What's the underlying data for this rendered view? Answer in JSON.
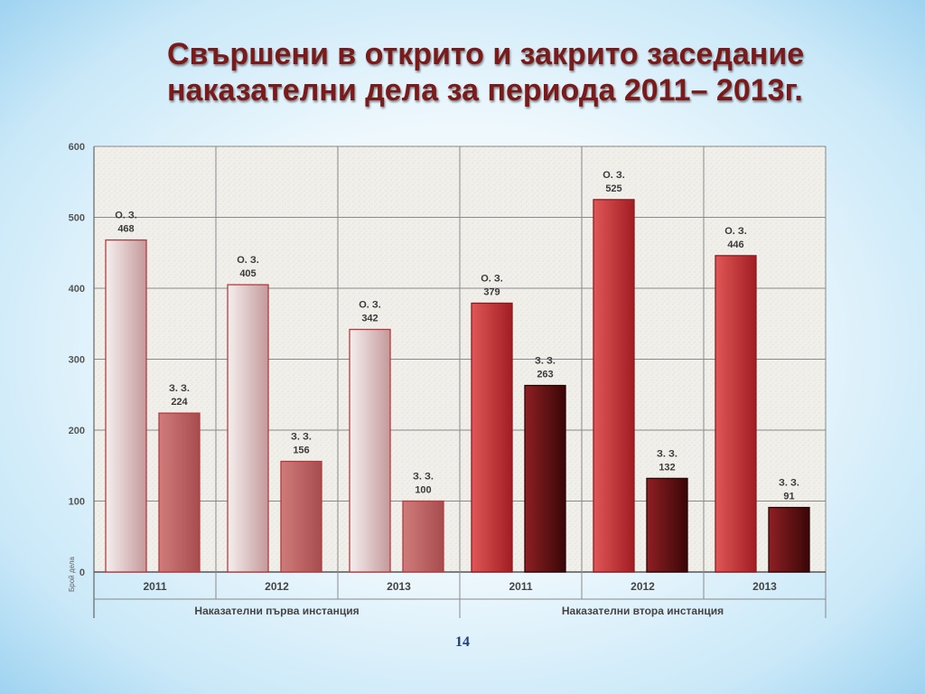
{
  "title": {
    "line1": "Свършени в открито и закрито заседание",
    "line2": "наказателни дела за периода 2011– 2013г."
  },
  "page_number": "14",
  "chart_data": {
    "type": "bar",
    "ylabel": "Брой дела",
    "ylim": [
      0,
      600
    ],
    "yticks": [
      0,
      100,
      200,
      300,
      400,
      500,
      600
    ],
    "grid": true,
    "groups": [
      {
        "name": "Наказателни първа инстанция",
        "style": "light",
        "years": [
          {
            "label": "2011",
            "bars": [
              {
                "label": "О. З.",
                "value": 468
              },
              {
                "label": "З. З.",
                "value": 224
              }
            ]
          },
          {
            "label": "2012",
            "bars": [
              {
                "label": "О. З.",
                "value": 405
              },
              {
                "label": "З. З.",
                "value": 156
              }
            ]
          },
          {
            "label": "2013",
            "bars": [
              {
                "label": "О. З.",
                "value": 342
              },
              {
                "label": "З. З.",
                "value": 100
              }
            ]
          }
        ]
      },
      {
        "name": "Наказателни втора инстанция",
        "style": "dark",
        "years": [
          {
            "label": "2011",
            "bars": [
              {
                "label": "О. З.",
                "value": 379
              },
              {
                "label": "З. З.",
                "value": 263
              }
            ]
          },
          {
            "label": "2012",
            "bars": [
              {
                "label": "О. З.",
                "value": 525
              },
              {
                "label": "З. З.",
                "value": 132
              }
            ]
          },
          {
            "label": "2013",
            "bars": [
              {
                "label": "О. З.",
                "value": 446
              },
              {
                "label": "З. З.",
                "value": 91
              }
            ]
          }
        ]
      }
    ],
    "colors": {
      "first_oz": [
        "#f6efef",
        "#c4999b"
      ],
      "first_zz": [
        "#d07c7c",
        "#a84c4e"
      ],
      "second_oz": [
        "#e05757",
        "#a11d22"
      ],
      "second_zz": [
        "#8e2024",
        "#3a0606"
      ],
      "plot_bg": "#f2f0ec",
      "grid": "#8a8a8a"
    }
  }
}
